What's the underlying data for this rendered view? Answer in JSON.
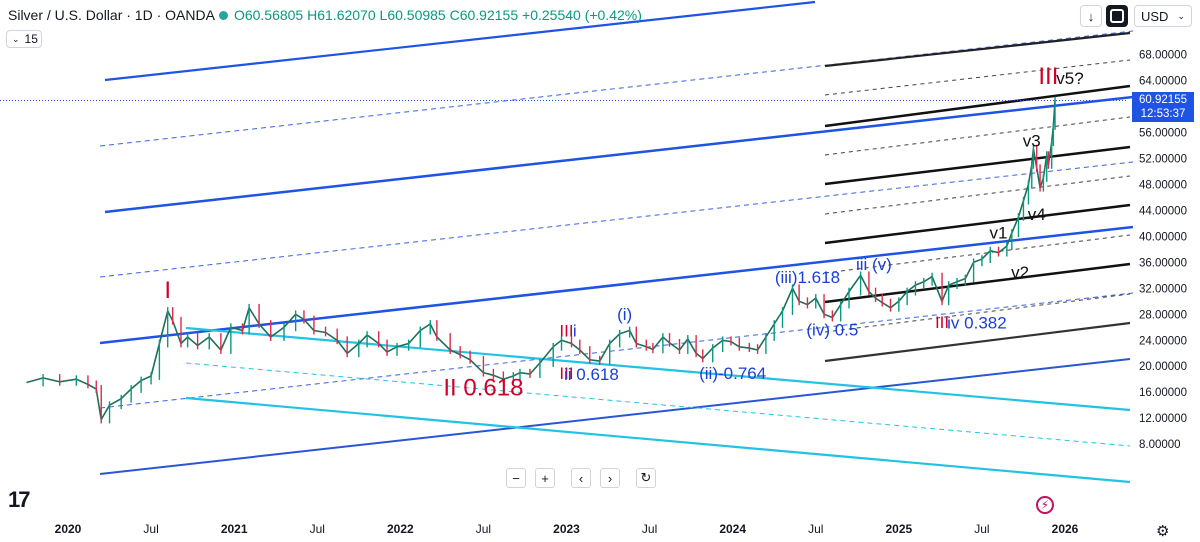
{
  "header": {
    "symbol": "Silver / U.S. Dollar · 1D · OANDA",
    "open": "O60.56805",
    "high": "H61.62070",
    "low": "L60.50985",
    "close": "C60.92155",
    "change": "+0.25540 (+0.42%)",
    "interval_value": "15",
    "currency": "USD"
  },
  "price_label": {
    "price": "60.92155",
    "countdown": "12:53:37"
  },
  "colors": {
    "up": "#089981",
    "accent": "#1e53e5",
    "wave_red": "#d1002b",
    "wave_blue": "#1a3fd6",
    "cyan": "#22c3e2"
  },
  "icons": {
    "arrow_down": "arrow-down-icon",
    "fullscreen": "fullscreen-icon",
    "zoom_out": "zoom-out-icon",
    "zoom_in": "zoom-in-icon",
    "prev": "chevron-left-icon",
    "next": "chevron-right-icon",
    "reset": "reset-icon",
    "settings": "gear-icon",
    "bolt": "lightning-icon",
    "logo": "tradingview-logo"
  },
  "chart_data": {
    "type": "line",
    "title": "Silver / U.S. Dollar · 1D · OANDA",
    "xlabel": "",
    "ylabel": "",
    "x_ticks": [
      "2020",
      "Jul",
      "2021",
      "Jul",
      "2022",
      "Jul",
      "2023",
      "Jul",
      "2024",
      "Jul",
      "2025",
      "Jul",
      "2026"
    ],
    "y_ticks": [
      8,
      12,
      16,
      20,
      24,
      28,
      32,
      36,
      40,
      44,
      48,
      52,
      56,
      60,
      64,
      68
    ],
    "y_tick_labels": [
      "8.00000",
      "12.00000",
      "16.00000",
      "20.00000",
      "24.00000",
      "28.00000",
      "32.00000",
      "36.00000",
      "40.00000",
      "44.00000",
      "48.00000",
      "52.00000",
      "56.00000",
      "60.00000",
      "64.00000",
      "68.00000"
    ],
    "ylim": [
      6.5,
      71
    ],
    "xlim": [
      2019.75,
      2026.25
    ],
    "grid": false,
    "series": [
      {
        "values": [
          [
            2019.75,
            17.5
          ],
          [
            2019.85,
            18.2
          ],
          [
            2019.95,
            17.6
          ],
          [
            2020.05,
            18.0
          ],
          [
            2020.12,
            17.2
          ],
          [
            2020.17,
            16.5
          ],
          [
            2020.2,
            11.8
          ],
          [
            2020.25,
            14.0
          ],
          [
            2020.32,
            15.0
          ],
          [
            2020.38,
            16.5
          ],
          [
            2020.44,
            17.8
          ],
          [
            2020.5,
            18.5
          ],
          [
            2020.55,
            23.5
          ],
          [
            2020.6,
            28.5
          ],
          [
            2020.63,
            27.0
          ],
          [
            2020.68,
            23.5
          ],
          [
            2020.72,
            24.5
          ],
          [
            2020.78,
            23.2
          ],
          [
            2020.85,
            24.5
          ],
          [
            2020.92,
            22.5
          ],
          [
            2020.98,
            26.0
          ],
          [
            2021.05,
            25.5
          ],
          [
            2021.09,
            29.0
          ],
          [
            2021.15,
            26.5
          ],
          [
            2021.22,
            24.5
          ],
          [
            2021.3,
            26.0
          ],
          [
            2021.37,
            28.0
          ],
          [
            2021.42,
            27.2
          ],
          [
            2021.48,
            25.5
          ],
          [
            2021.55,
            25.2
          ],
          [
            2021.62,
            24.0
          ],
          [
            2021.68,
            22.0
          ],
          [
            2021.75,
            23.5
          ],
          [
            2021.8,
            24.8
          ],
          [
            2021.87,
            23.5
          ],
          [
            2021.92,
            22.2
          ],
          [
            2021.98,
            23.0
          ],
          [
            2022.05,
            23.5
          ],
          [
            2022.12,
            25.5
          ],
          [
            2022.18,
            26.5
          ],
          [
            2022.22,
            24.5
          ],
          [
            2022.3,
            22.5
          ],
          [
            2022.36,
            21.8
          ],
          [
            2022.42,
            21.0
          ],
          [
            2022.5,
            19.0
          ],
          [
            2022.56,
            18.6
          ],
          [
            2022.62,
            18.0
          ],
          [
            2022.68,
            18.5
          ],
          [
            2022.72,
            19.0
          ],
          [
            2022.78,
            18.8
          ],
          [
            2022.84,
            20.5
          ],
          [
            2022.92,
            23.0
          ],
          [
            2022.97,
            24.0
          ],
          [
            2023.03,
            23.5
          ],
          [
            2023.08,
            22.5
          ],
          [
            2023.14,
            21.0
          ],
          [
            2023.2,
            20.8
          ],
          [
            2023.26,
            23.5
          ],
          [
            2023.32,
            25.0
          ],
          [
            2023.38,
            25.5
          ],
          [
            2023.42,
            23.5
          ],
          [
            2023.48,
            23.0
          ],
          [
            2023.52,
            22.6
          ],
          [
            2023.58,
            24.5
          ],
          [
            2023.62,
            23.6
          ],
          [
            2023.68,
            22.5
          ],
          [
            2023.73,
            24.2
          ],
          [
            2023.78,
            22.0
          ],
          [
            2023.82,
            21.2
          ],
          [
            2023.88,
            22.8
          ],
          [
            2023.94,
            24.0
          ],
          [
            2023.99,
            23.8
          ],
          [
            2024.04,
            23.0
          ],
          [
            2024.1,
            22.8
          ],
          [
            2024.15,
            22.5
          ],
          [
            2024.2,
            24.5
          ],
          [
            2024.25,
            26.5
          ],
          [
            2024.3,
            28.5
          ],
          [
            2024.36,
            32.0
          ],
          [
            2024.4,
            30.0
          ],
          [
            2024.45,
            29.5
          ],
          [
            2024.5,
            30.5
          ],
          [
            2024.55,
            28.0
          ],
          [
            2024.6,
            27.5
          ],
          [
            2024.65,
            29.5
          ],
          [
            2024.7,
            31.5
          ],
          [
            2024.77,
            34.0
          ],
          [
            2024.82,
            31.5
          ],
          [
            2024.86,
            30.5
          ],
          [
            2024.9,
            29.8
          ],
          [
            2024.95,
            29.0
          ],
          [
            2025.0,
            30.0
          ],
          [
            2025.05,
            31.5
          ],
          [
            2025.1,
            32.5
          ],
          [
            2025.15,
            33.0
          ],
          [
            2025.2,
            33.8
          ],
          [
            2025.26,
            30.0
          ],
          [
            2025.3,
            32.5
          ],
          [
            2025.35,
            33.0
          ],
          [
            2025.4,
            33.5
          ],
          [
            2025.45,
            36.0
          ],
          [
            2025.5,
            36.5
          ],
          [
            2025.55,
            37.8
          ],
          [
            2025.6,
            37.5
          ],
          [
            2025.65,
            38.5
          ],
          [
            2025.68,
            40.5
          ],
          [
            2025.72,
            43.0
          ],
          [
            2025.75,
            45.5
          ],
          [
            2025.78,
            48.0
          ],
          [
            2025.8,
            51.0
          ],
          [
            2025.81,
            53.5
          ],
          [
            2025.83,
            50.5
          ],
          [
            2025.85,
            47.5
          ],
          [
            2025.87,
            49.0
          ],
          [
            2025.89,
            52.5
          ],
          [
            2025.9,
            51.0
          ],
          [
            2025.92,
            54.5
          ],
          [
            2025.93,
            57.0
          ],
          [
            2025.94,
            60.9
          ]
        ]
      }
    ],
    "annotations": [
      {
        "text": "I",
        "x": 2020.6,
        "y": 30.5,
        "color": "red",
        "size": "large"
      },
      {
        "text": "II 0.618",
        "x": 2022.5,
        "y": 15.5,
        "color": "red",
        "size": "large"
      },
      {
        "text": "III",
        "x": 2023.0,
        "y": 24.6,
        "color": "red"
      },
      {
        "text": "III",
        "x": 2023.0,
        "y": 18.0,
        "color": "red"
      },
      {
        "text": "III",
        "x": 2025.26,
        "y": 25.9,
        "color": "red"
      },
      {
        "text": "III",
        "x": 2025.9,
        "y": 63.5,
        "color": "red",
        "size": "large"
      },
      {
        "text": "i",
        "x": 2023.05,
        "y": 24.6,
        "color": "blue"
      },
      {
        "text": "ii 0.618",
        "x": 2023.15,
        "y": 17.9,
        "color": "blue"
      },
      {
        "text": "(i)",
        "x": 2023.35,
        "y": 27.1,
        "color": "blue"
      },
      {
        "text": "(ii)-0.764",
        "x": 2024.0,
        "y": 18.0,
        "color": "blue"
      },
      {
        "text": "(iii)1.618",
        "x": 2024.45,
        "y": 32.8,
        "color": "blue"
      },
      {
        "text": "(iv) 0.5",
        "x": 2024.6,
        "y": 24.7,
        "color": "blue"
      },
      {
        "text": "iii (v)",
        "x": 2024.85,
        "y": 34.8,
        "color": "blue"
      },
      {
        "text": "iv 0.382",
        "x": 2025.47,
        "y": 25.8,
        "color": "blue"
      },
      {
        "text": "v1",
        "x": 2025.6,
        "y": 39.7,
        "color": "black"
      },
      {
        "text": "v2",
        "x": 2025.73,
        "y": 33.6,
        "color": "black"
      },
      {
        "text": "v3",
        "x": 2025.8,
        "y": 53.8,
        "color": "black"
      },
      {
        "text": "v4",
        "x": 2025.83,
        "y": 42.5,
        "color": "black"
      },
      {
        "text": "v5?",
        "x": 2026.03,
        "y": 63.5,
        "color": "black"
      }
    ]
  }
}
